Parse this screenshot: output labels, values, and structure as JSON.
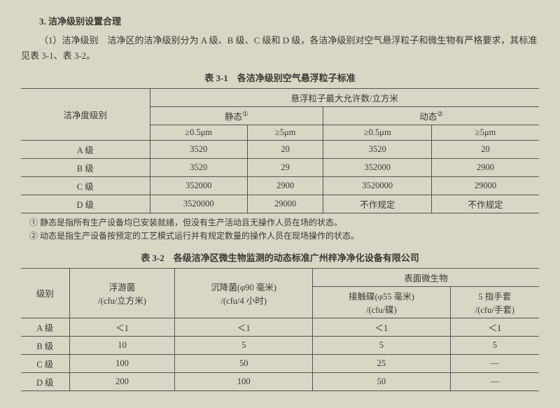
{
  "heading": "3. 洁净级别设置合理",
  "paragraph": "（1）洁净级别　洁净区的洁净级别分为 A 级、B 级、C 级和 D 级，各洁净级别对空气悬浮粒子和微生物有严格要求，其标准见表 3-1、表 3-2。",
  "table1": {
    "title": "表 3-1　各洁净级别空气悬浮粒子标准",
    "header_group": "悬浮粒子最大允许数/立方米",
    "col_level": "洁净度级别",
    "col_static": "静态",
    "col_dynamic": "动态",
    "sup1": "①",
    "sup2": "②",
    "sub05": "≥0.5μm",
    "sub5": "≥5μm",
    "rows": [
      {
        "level": "A 级",
        "s05": "3520",
        "s5": "20",
        "d05": "3520",
        "d5": "20"
      },
      {
        "level": "B 级",
        "s05": "3520",
        "s5": "29",
        "d05": "352000",
        "d5": "2900"
      },
      {
        "level": "C 级",
        "s05": "352000",
        "s5": "2900",
        "d05": "3520000",
        "d5": "29000"
      },
      {
        "level": "D 级",
        "s05": "3520000",
        "s5": "29000",
        "d05": "不作规定",
        "d5": "不作规定"
      }
    ],
    "footnote1": "① 静态是指所有生产设备均已安装就绪，但没有生产活动且无操作人员在场的状态。",
    "footnote2": "② 动态是指生产设备按预定的工艺模式运行并有规定数量的操作人员在现场操作的状态。"
  },
  "table2": {
    "title": "表 3-2　各级洁净区微生物监测的动态标准广州梓净净化设备有限公司",
    "col_level": "级别",
    "col_float": "浮游菌",
    "col_float_unit": "/(cfu/立方米)",
    "col_settle": "沉降菌(φ90 毫米)",
    "col_settle_unit": "/(cfu/4 小时)",
    "col_surface": "表面微生物",
    "col_contact": "接触碟(φ55 毫米)",
    "col_contact_unit": "/(cfu/碟)",
    "col_glove": "5 指手套",
    "col_glove_unit": "/(cfu/手套)",
    "rows": [
      {
        "level": "A 级",
        "float": "＜1",
        "settle": "＜1",
        "contact": "＜1",
        "glove": "＜1"
      },
      {
        "level": "B 级",
        "float": "10",
        "settle": "5",
        "contact": "5",
        "glove": "5"
      },
      {
        "level": "C 级",
        "float": "100",
        "settle": "50",
        "contact": "25",
        "glove": "—"
      },
      {
        "level": "D 级",
        "float": "200",
        "settle": "100",
        "contact": "50",
        "glove": "—"
      }
    ]
  }
}
